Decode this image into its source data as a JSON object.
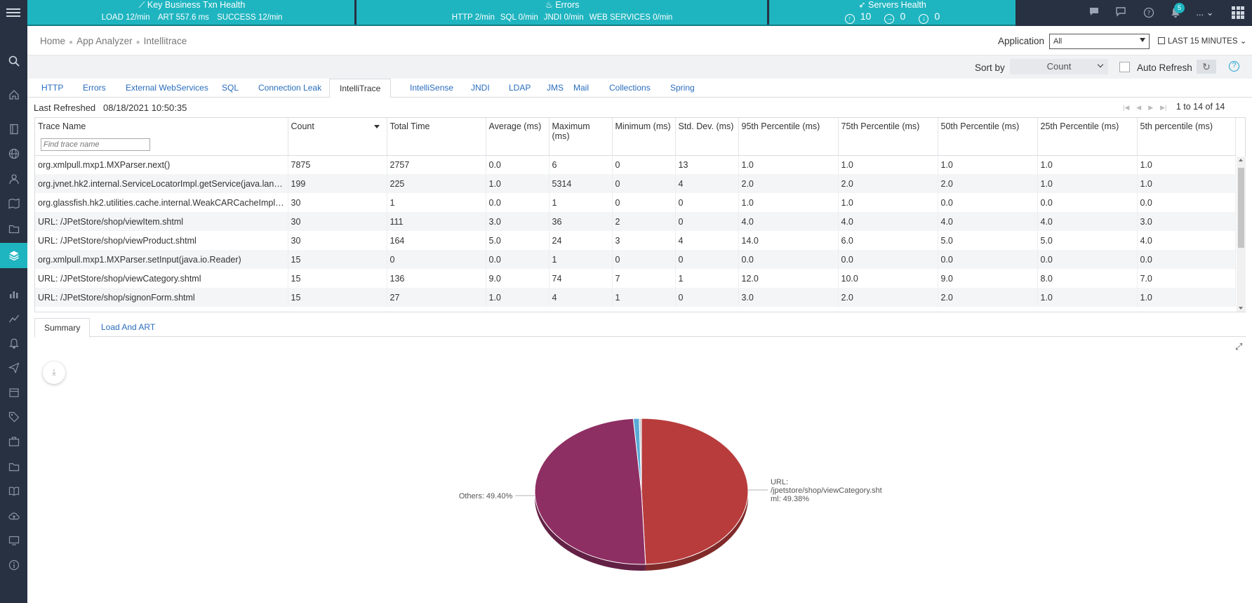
{
  "topbar": {
    "kpis": [
      {
        "title": "Key Business Txn Health",
        "stats": [
          "LOAD 12/min",
          "ART 557.6 ms",
          "SUCCESS 12/min"
        ]
      },
      {
        "title": "Errors",
        "stats": [
          "HTTP 2/min",
          "SQL 0/min",
          "JNDI 0/min",
          "WEB SERVICES 0/min"
        ]
      },
      {
        "title": "Servers Health",
        "servers": [
          {
            "icon": "arrow-up-circle-icon",
            "value": "10"
          },
          {
            "icon": "arrow-right-circle-icon",
            "value": "0"
          },
          {
            "icon": "arrow-down-circle-icon",
            "value": "0"
          }
        ]
      }
    ],
    "notification_count": "5",
    "more_label": "..."
  },
  "breadcrumb": [
    "Home",
    "App Analyzer",
    "Intellitrace"
  ],
  "application": {
    "label": "Application",
    "value": "All"
  },
  "timerange": "LAST 15 MINUTES",
  "sort": {
    "label": "Sort by",
    "value": "Count"
  },
  "auto_refresh_label": "Auto Refresh",
  "tabs": [
    {
      "label": "HTTP",
      "active": false
    },
    {
      "label": "Errors",
      "active": false
    },
    {
      "label": "External WebServices",
      "active": false
    },
    {
      "label": "SQL",
      "active": false
    },
    {
      "label": "Connection Leak",
      "active": false
    },
    {
      "label": "IntelliTrace",
      "active": true
    },
    {
      "label": "IntelliSense",
      "active": false
    },
    {
      "label": "JNDI",
      "active": false
    },
    {
      "label": "LDAP",
      "active": false
    },
    {
      "label": "JMS",
      "active": false
    },
    {
      "label": "Mail",
      "active": false
    },
    {
      "label": "Collections",
      "active": false
    },
    {
      "label": "Spring",
      "active": false
    }
  ],
  "last_refreshed": {
    "label": "Last Refreshed",
    "value": "08/18/2021 10:50:35"
  },
  "pager": "1 to 14 of 14",
  "table": {
    "columns": [
      "Trace Name",
      "Count",
      "Total Time",
      "Average (ms)",
      "Maximum (ms)",
      "Minimum (ms)",
      "Std. Dev. (ms)",
      "95th Percentile (ms)",
      "75th Percentile (ms)",
      "50th Percentile (ms)",
      "25th Percentile (ms)",
      "5th percentile (ms)"
    ],
    "filter_placeholder": "Find trace name",
    "rows": [
      [
        "org.xmlpull.mxp1.MXParser.next()",
        "7875",
        "2757",
        "0.0",
        "6",
        "0",
        "13",
        "1.0",
        "1.0",
        "1.0",
        "1.0",
        "1.0"
      ],
      [
        "org.jvnet.hk2.internal.ServiceLocatorImpl.getService(java.lang.Class)",
        "199",
        "225",
        "1.0",
        "5314",
        "0",
        "4",
        "2.0",
        "2.0",
        "2.0",
        "1.0",
        "1.0"
      ],
      [
        "org.glassfish.hk2.utilities.cache.internal.WeakCARCacheImpl.compute()",
        "30",
        "1",
        "0.0",
        "1",
        "0",
        "0",
        "1.0",
        "1.0",
        "0.0",
        "0.0",
        "0.0"
      ],
      [
        "URL: /JPetStore/shop/viewItem.shtml",
        "30",
        "111",
        "3.0",
        "36",
        "2",
        "0",
        "4.0",
        "4.0",
        "4.0",
        "4.0",
        "3.0"
      ],
      [
        "URL: /JPetStore/shop/viewProduct.shtml",
        "30",
        "164",
        "5.0",
        "24",
        "3",
        "4",
        "14.0",
        "6.0",
        "5.0",
        "5.0",
        "4.0"
      ],
      [
        "org.xmlpull.mxp1.MXParser.setInput(java.io.Reader)",
        "15",
        "0",
        "0.0",
        "1",
        "0",
        "0",
        "0.0",
        "0.0",
        "0.0",
        "0.0",
        "0.0"
      ],
      [
        "URL: /JPetStore/shop/viewCategory.shtml",
        "15",
        "136",
        "9.0",
        "74",
        "7",
        "1",
        "12.0",
        "10.0",
        "9.0",
        "8.0",
        "7.0"
      ],
      [
        "URL: /JPetStore/shop/signonForm.shtml",
        "15",
        "27",
        "1.0",
        "4",
        "1",
        "0",
        "3.0",
        "2.0",
        "2.0",
        "1.0",
        "1.0"
      ]
    ]
  },
  "bottom_tabs": [
    {
      "label": "Summary",
      "active": true
    },
    {
      "label": "Load And ART",
      "active": false
    }
  ],
  "chart_data": {
    "type": "pie",
    "slices": [
      {
        "label": "URL: /jpetstore/shop/viewCategory.shtml",
        "display_label": "URL: /jpetstore/shop/viewCategory.sht ml: 49.38%",
        "value": 49.38,
        "color": "#b83c3c"
      },
      {
        "label": "Others",
        "display_label": "Others: 49.40%",
        "value": 49.4,
        "color": "#8e2f63"
      },
      {
        "label": "",
        "value": 0.9,
        "color": "#5aaad6"
      },
      {
        "label": "",
        "value": 0.32,
        "color": "#c8c8c8"
      }
    ]
  }
}
